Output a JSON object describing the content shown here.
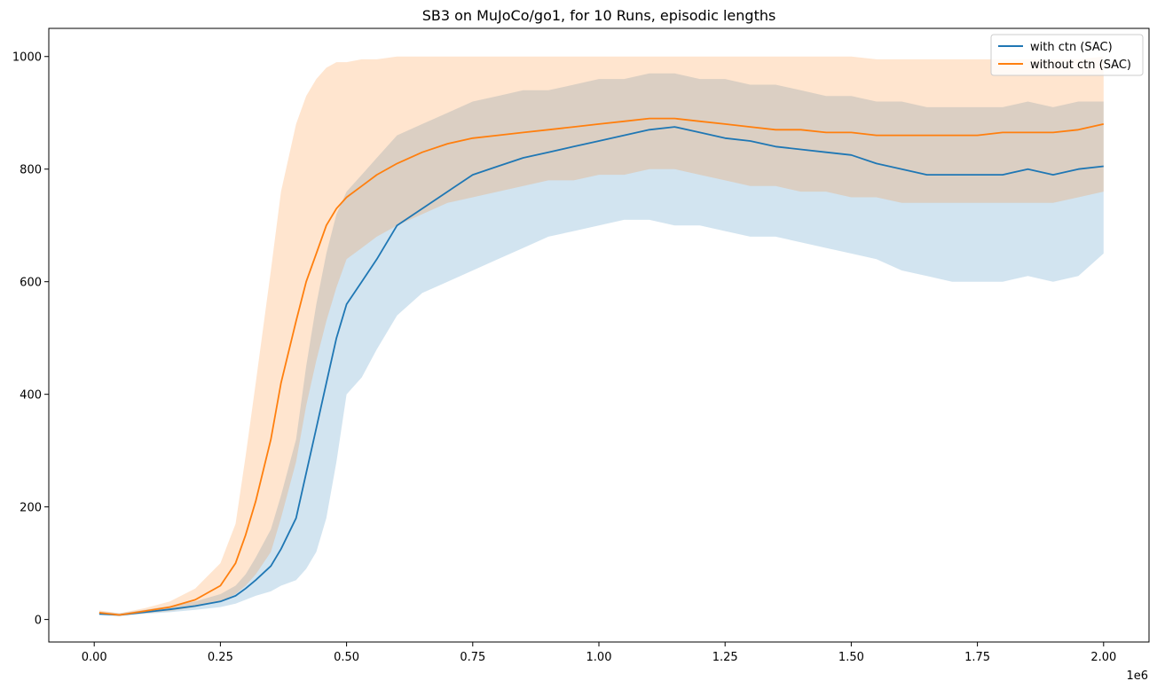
{
  "chart_data": {
    "type": "line",
    "title": "SB3 on MuJoCo/go1, for 10 Runs, episodic lengths",
    "xlabel": "",
    "ylabel": "",
    "x_offset_label": "1e6",
    "xlim": [
      -0.09,
      2.09
    ],
    "ylim": [
      -40,
      1050
    ],
    "x_ticks": [
      0.0,
      0.25,
      0.5,
      0.75,
      1.0,
      1.25,
      1.5,
      1.75,
      2.0
    ],
    "x_tick_labels": [
      "0.00",
      "0.25",
      "0.50",
      "0.75",
      "1.00",
      "1.25",
      "1.50",
      "1.75",
      "2.00"
    ],
    "y_ticks": [
      0,
      200,
      400,
      600,
      800,
      1000
    ],
    "y_tick_labels": [
      "0",
      "200",
      "400",
      "600",
      "800",
      "1000"
    ],
    "grid": false,
    "legend_position": "top-right",
    "x": [
      0.01,
      0.05,
      0.1,
      0.15,
      0.2,
      0.25,
      0.28,
      0.3,
      0.32,
      0.35,
      0.37,
      0.4,
      0.42,
      0.44,
      0.46,
      0.48,
      0.5,
      0.53,
      0.56,
      0.6,
      0.65,
      0.7,
      0.75,
      0.8,
      0.85,
      0.9,
      0.95,
      1.0,
      1.05,
      1.1,
      1.15,
      1.2,
      1.25,
      1.3,
      1.35,
      1.4,
      1.45,
      1.5,
      1.55,
      1.6,
      1.65,
      1.7,
      1.75,
      1.8,
      1.85,
      1.9,
      1.95,
      2.0
    ],
    "series": [
      {
        "name": "with ctn (SAC)",
        "color": "#1f77b4",
        "mean": [
          10,
          8,
          13,
          18,
          24,
          32,
          42,
          55,
          70,
          95,
          125,
          180,
          260,
          340,
          420,
          500,
          560,
          600,
          640,
          700,
          730,
          760,
          790,
          805,
          820,
          830,
          840,
          850,
          860,
          870,
          875,
          865,
          855,
          850,
          840,
          835,
          830,
          825,
          810,
          800,
          790,
          790,
          790,
          790,
          800,
          790,
          800,
          805
        ],
        "lower": [
          8,
          6,
          10,
          13,
          17,
          22,
          28,
          35,
          42,
          50,
          60,
          70,
          90,
          120,
          180,
          280,
          400,
          430,
          480,
          540,
          580,
          600,
          620,
          640,
          660,
          680,
          690,
          700,
          710,
          710,
          700,
          700,
          690,
          680,
          680,
          670,
          660,
          650,
          640,
          620,
          610,
          600,
          600,
          600,
          610,
          600,
          610,
          650
        ],
        "upper": [
          14,
          11,
          17,
          24,
          32,
          45,
          60,
          80,
          110,
          160,
          220,
          320,
          450,
          560,
          650,
          720,
          760,
          790,
          820,
          860,
          880,
          900,
          920,
          930,
          940,
          940,
          950,
          960,
          960,
          970,
          970,
          960,
          960,
          950,
          950,
          940,
          930,
          930,
          920,
          920,
          910,
          910,
          910,
          910,
          920,
          910,
          920,
          920
        ]
      },
      {
        "name": "without ctn (SAC)",
        "color": "#ff7f0e",
        "mean": [
          12,
          8,
          15,
          22,
          35,
          60,
          100,
          150,
          210,
          320,
          420,
          530,
          600,
          650,
          700,
          730,
          750,
          770,
          790,
          810,
          830,
          845,
          855,
          860,
          865,
          870,
          875,
          880,
          885,
          890,
          890,
          885,
          880,
          875,
          870,
          870,
          865,
          865,
          860,
          860,
          860,
          860,
          860,
          865,
          865,
          865,
          870,
          880
        ],
        "lower": [
          9,
          6,
          11,
          15,
          22,
          32,
          45,
          60,
          80,
          120,
          180,
          280,
          380,
          460,
          530,
          590,
          640,
          660,
          680,
          700,
          720,
          740,
          750,
          760,
          770,
          780,
          780,
          790,
          790,
          800,
          800,
          790,
          780,
          770,
          770,
          760,
          760,
          750,
          750,
          740,
          740,
          740,
          740,
          740,
          740,
          740,
          750,
          760
        ],
        "upper": [
          16,
          11,
          20,
          32,
          55,
          100,
          170,
          290,
          420,
          620,
          760,
          880,
          930,
          960,
          980,
          990,
          990,
          995,
          995,
          1000,
          1000,
          1000,
          1000,
          1000,
          1000,
          1000,
          1000,
          1000,
          1000,
          1000,
          1000,
          1000,
          1000,
          1000,
          1000,
          1000,
          1000,
          1000,
          995,
          995,
          995,
          995,
          995,
          995,
          995,
          995,
          995,
          1000
        ]
      }
    ]
  }
}
